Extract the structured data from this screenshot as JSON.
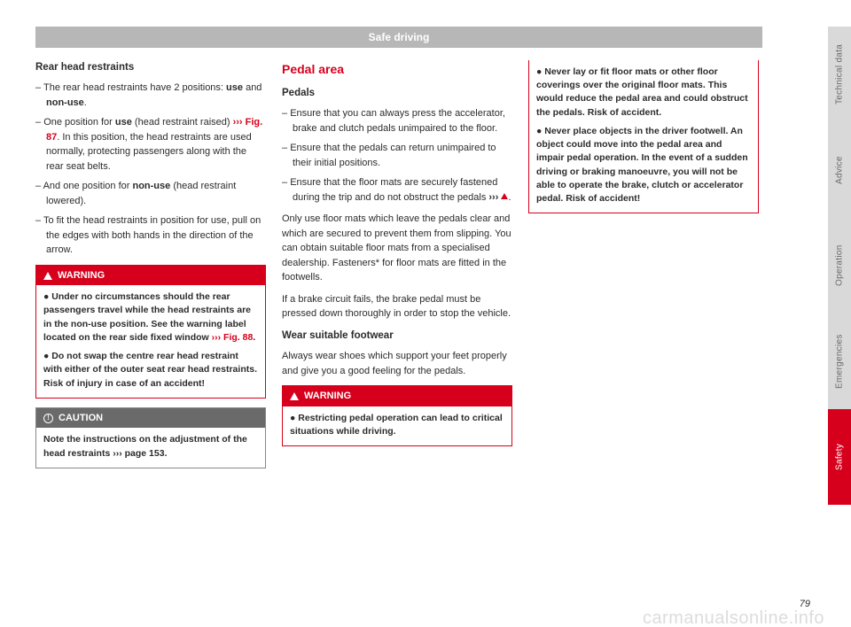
{
  "colors": {
    "red": "#d6001c",
    "grey_header_bg": "#b7b7b7",
    "grey_header_text": "#ffffff",
    "caution_bg": "#6a6a6a",
    "tab_inactive_bg": "#d9d9d9",
    "tab_inactive_text": "#6a6a6a",
    "tab_active_bg": "#d6001c",
    "tab_active_text": "#ffffff",
    "text": "#2b2b2b",
    "watermark": "#dcdcdc"
  },
  "header": {
    "title": "Safe driving"
  },
  "col1": {
    "heading": "Rear head restraints",
    "b1_pre": "The rear head restraints have 2 positions: ",
    "b1_use": "use",
    "b1_mid": " and ",
    "b1_non": "non-use",
    "b1_post": ".",
    "b2_pre": "One position for ",
    "b2_use": "use",
    "b2_mid1": " (head restraint raised) ",
    "b2_ref": "››› Fig. 87",
    "b2_mid2": ". In this position, the head restraints are used normally, protecting passengers along with the rear seat belts.",
    "b3_pre": "And one position for ",
    "b3_non": "non-use",
    "b3_post": " (head restraint lowered).",
    "b4": "To fit the head restraints in position for use, pull on the edges with both hands in the direction of the arrow.",
    "warn_label": "WARNING",
    "warn1_pre": "● Under no circumstances should the rear passengers travel while the head restraints are in the non-use position. See the warning label located on the rear side fixed window ",
    "warn1_ref": "››› Fig. 88",
    "warn1_post": ".",
    "warn2": "● Do not swap the centre rear head restraint with either of the outer seat rear head restraints. Risk of injury in case of an accident!",
    "caution_label": "CAUTION",
    "caution_body_pre": "Note the instructions on the adjustment of the head restraints ",
    "caution_body_ref": "››› page 153",
    "caution_body_post": "."
  },
  "col2": {
    "section": "Pedal area",
    "sub": "Pedals",
    "b1": "Ensure that you can always press the accelerator, brake and clutch pedals unimpaired to the floor.",
    "b2": "Ensure that the pedals can return unimpaired to their initial positions.",
    "b3_pre": "Ensure that the floor mats are securely fastened during the trip and do not obstruct the pedals ",
    "b3_ref": "›››",
    "b3_post": ".",
    "p1": "Only use floor mats which leave the pedals clear and which are secured to prevent them from slipping. You can obtain suitable floor mats from a specialised dealership. Fasteners* for floor mats are fitted in the footwells.",
    "p2": "If a brake circuit fails, the brake pedal must be pressed down thoroughly in order to stop the vehicle.",
    "sub2": "Wear suitable footwear",
    "p3": "Always wear shoes which support your feet properly and give you a good feeling for the pedals.",
    "warn_label": "WARNING",
    "warn1": "● Restricting pedal operation can lead to critical situations while driving."
  },
  "col3": {
    "warn2": "● Never lay or fit floor mats or other floor coverings over the original floor mats. This would reduce the pedal area and could obstruct the pedals. Risk of accident.",
    "warn3": "● Never place objects in the driver footwell. An object could move into the pedal area and impair pedal operation. In the event of a sudden driving or braking manoeuvre, you will not be able to operate the brake, clutch or accelerator pedal. Risk of accident!"
  },
  "tabs": [
    {
      "label": "Technical data",
      "active": false
    },
    {
      "label": "Advice",
      "active": false
    },
    {
      "label": "Operation",
      "active": false
    },
    {
      "label": "Emergencies",
      "active": false
    },
    {
      "label": "Safety",
      "active": true
    }
  ],
  "page_number": "79",
  "watermark": "carmanualsonline.info"
}
